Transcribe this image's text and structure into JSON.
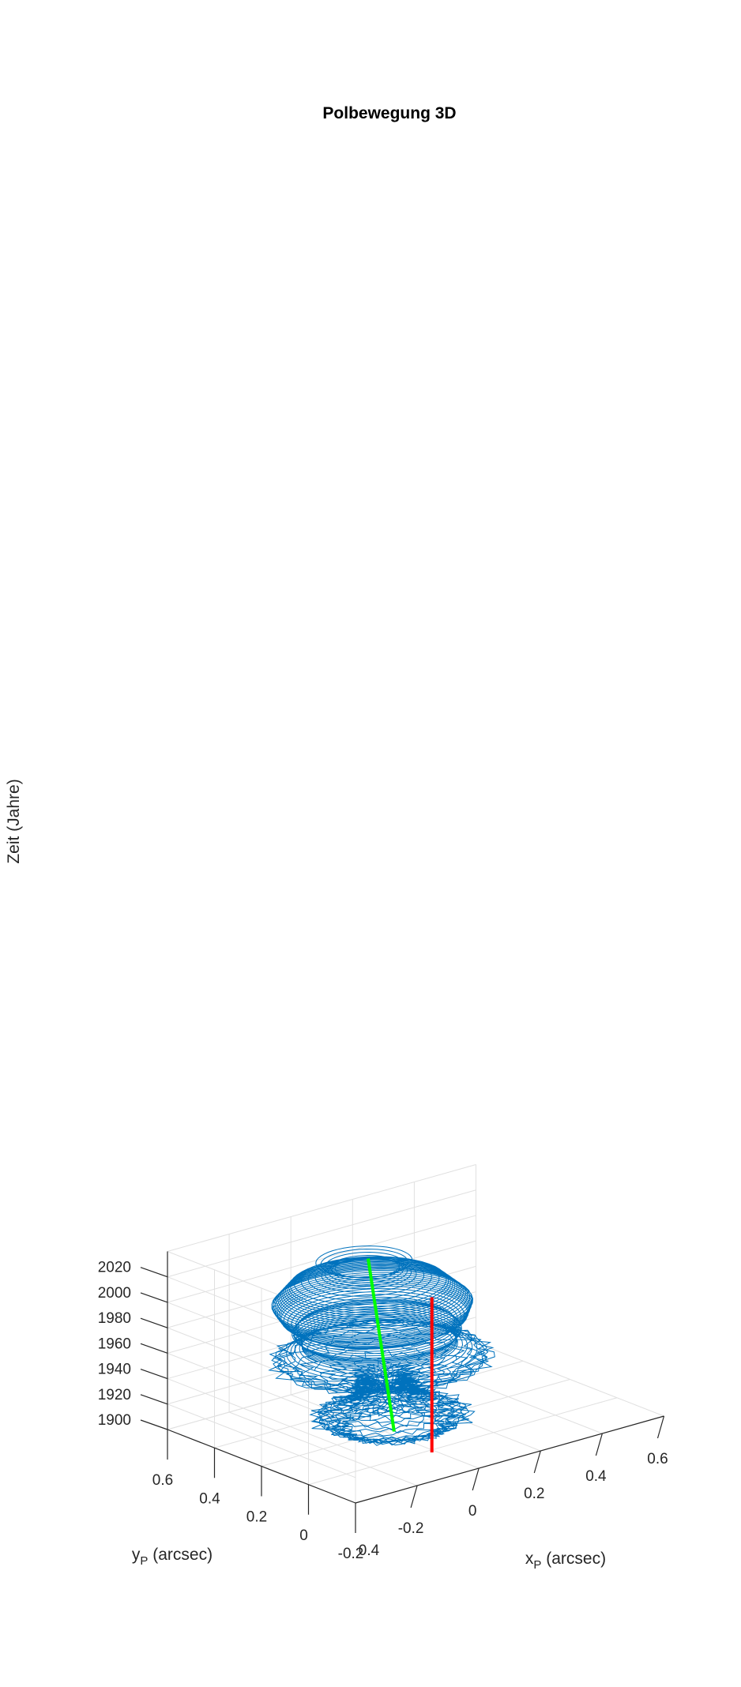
{
  "chart_data": {
    "type": "line3d",
    "title": "Polbewegung 3D",
    "xlabel": "x",
    "xlabel_sub": "P",
    "xlabel_unit": " (arcsec)",
    "ylabel": "y",
    "ylabel_sub": "P",
    "ylabel_unit": " (arcsec)",
    "zlabel": "Zeit (Jahre)",
    "xlim": [
      -0.4,
      0.6
    ],
    "ylim": [
      -0.2,
      0.6
    ],
    "zlim": [
      1900,
      2040
    ],
    "x_ticks": [
      -0.2,
      0,
      0.2,
      0.4,
      0.6
    ],
    "x_tick_labels": [
      "-0.2",
      "0",
      "0.2",
      "0.4",
      "0.6"
    ],
    "y_ticks": [
      -0.2,
      0,
      0.2,
      0.4,
      0.6
    ],
    "y_tick_labels": [
      "-0.2",
      "0",
      "0.2",
      "0.4",
      "0.6"
    ],
    "x_corner_label": "0.4",
    "z_ticks": [
      1900,
      1920,
      1940,
      1960,
      1980,
      2000,
      2020
    ],
    "z_tick_labels": [
      "1900",
      "1920",
      "1940",
      "1960",
      "1980",
      "2000",
      "2020"
    ],
    "grid": true,
    "series": [
      {
        "kind": "polar-motion",
        "color": "#0072BD",
        "t_start": 1900,
        "t_end": 2020,
        "mean_start": [
          0.03,
          0.2
        ],
        "mean_end": [
          0.05,
          0.35
        ],
        "amplitude_profile": [
          [
            1900,
            0.12
          ],
          [
            1905,
            0.15
          ],
          [
            1910,
            0.2
          ],
          [
            1915,
            0.15
          ],
          [
            1920,
            0.1
          ],
          [
            1925,
            0.07
          ],
          [
            1930,
            0.08
          ],
          [
            1935,
            0.05
          ],
          [
            1940,
            0.07
          ],
          [
            1945,
            0.2
          ],
          [
            1950,
            0.28
          ],
          [
            1955,
            0.25
          ],
          [
            1960,
            0.2
          ],
          [
            1965,
            0.2
          ],
          [
            1970,
            0.22
          ],
          [
            1975,
            0.2
          ],
          [
            1980,
            0.24
          ],
          [
            1985,
            0.25
          ],
          [
            1990,
            0.26
          ],
          [
            1995,
            0.24
          ],
          [
            2000,
            0.22
          ],
          [
            2005,
            0.2
          ],
          [
            2010,
            0.12
          ],
          [
            2015,
            0.08
          ],
          [
            2020,
            0.13
          ]
        ]
      },
      {
        "kind": "mean-pole-trend",
        "color": "#00FF00",
        "points": [
          [
            0.03,
            0.2,
            1898
          ],
          [
            0.06,
            0.35,
            2021
          ]
        ]
      },
      {
        "kind": "reference-axis",
        "color": "#FF0000",
        "points": [
          [
            0,
            0,
            1898
          ],
          [
            0,
            0,
            2020
          ]
        ]
      }
    ]
  }
}
